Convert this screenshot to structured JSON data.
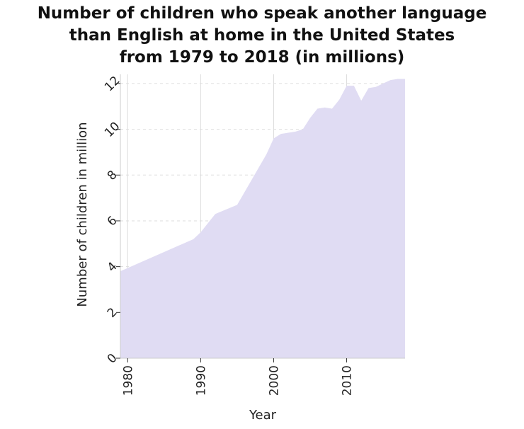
{
  "chart_data": {
    "type": "area",
    "title": "Number of children who speak another language than English at home in the United States from 1979 to 2018 (in millions)",
    "title_lines": [
      "Number of children who speak another language",
      "than English at home in the United States",
      "from 1979 to 2018 (in millions)"
    ],
    "xlabel": "Year",
    "ylabel": "Number of children in million",
    "xlim": [
      1979,
      2018
    ],
    "ylim": [
      0,
      12.4
    ],
    "xticks": [
      1980,
      1990,
      2000,
      2010
    ],
    "yticks": [
      0,
      2,
      4,
      6,
      8,
      10,
      12
    ],
    "grid": "horizontal dashed",
    "fill_color": "#e0dcf3",
    "x": [
      1979,
      1989,
      1990,
      1992,
      1995,
      1997,
      1999,
      2000,
      2001,
      2003,
      2004,
      2005,
      2006,
      2007,
      2008,
      2009,
      2010,
      2011,
      2012,
      2013,
      2014,
      2015,
      2016,
      2017,
      2018
    ],
    "values": [
      3.8,
      5.2,
      5.5,
      6.3,
      6.7,
      7.8,
      8.9,
      9.6,
      9.8,
      9.9,
      10.0,
      10.5,
      10.9,
      10.95,
      10.9,
      11.3,
      11.9,
      11.9,
      11.25,
      11.8,
      11.85,
      12.0,
      12.15,
      12.2,
      12.2
    ]
  }
}
